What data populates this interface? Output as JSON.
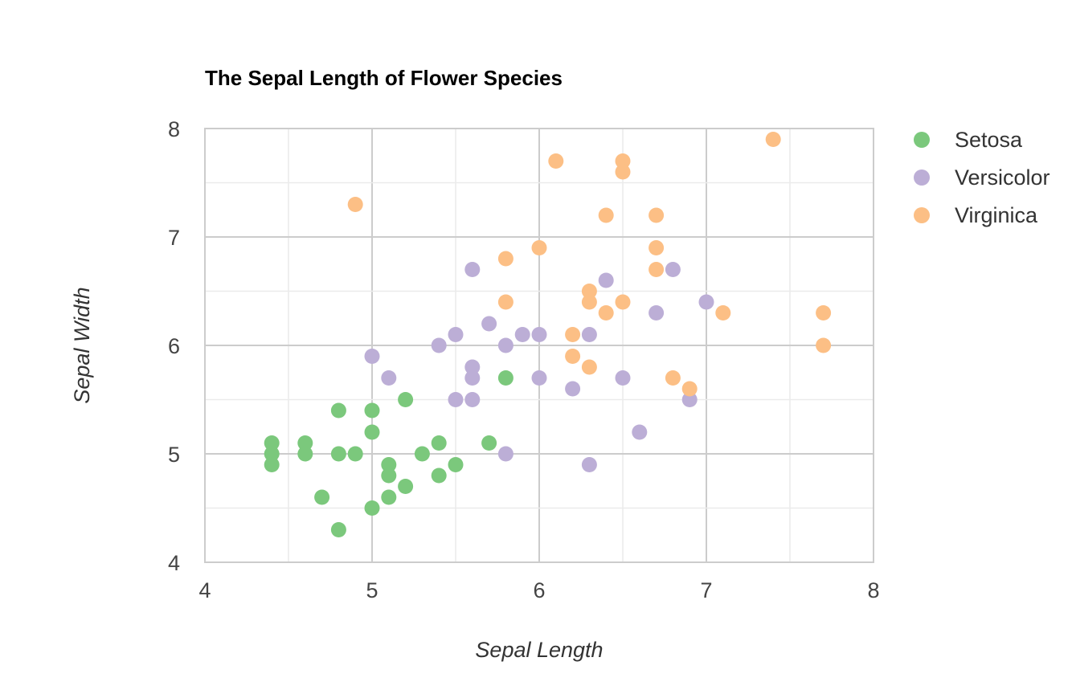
{
  "chart_data": {
    "type": "scatter",
    "title": "The Sepal Length of Flower Species",
    "xlabel": "Sepal Length",
    "ylabel": "Sepal Width",
    "xlim": [
      4,
      8
    ],
    "ylim": [
      4,
      8
    ],
    "xticks": [
      "4",
      "5",
      "6",
      "7",
      "8"
    ],
    "yticks": [
      "4",
      "5",
      "6",
      "7",
      "8"
    ],
    "grid": true,
    "legend_position": "right",
    "series": [
      {
        "name": "Setosa",
        "color": "#7bc87c",
        "points": [
          [
            4.4,
            5.1
          ],
          [
            4.4,
            5.0
          ],
          [
            4.4,
            4.9
          ],
          [
            4.6,
            5.1
          ],
          [
            4.6,
            5.0
          ],
          [
            4.7,
            4.6
          ],
          [
            4.8,
            5.4
          ],
          [
            4.8,
            5.0
          ],
          [
            4.8,
            4.3
          ],
          [
            4.9,
            5.0
          ],
          [
            5.0,
            5.4
          ],
          [
            5.0,
            5.2
          ],
          [
            5.0,
            4.5
          ],
          [
            5.1,
            4.9
          ],
          [
            5.1,
            4.8
          ],
          [
            5.1,
            4.6
          ],
          [
            5.2,
            5.5
          ],
          [
            5.2,
            4.7
          ],
          [
            5.3,
            5.0
          ],
          [
            5.4,
            5.1
          ],
          [
            5.4,
            4.8
          ],
          [
            5.5,
            4.9
          ],
          [
            5.7,
            5.1
          ],
          [
            5.8,
            5.7
          ]
        ]
      },
      {
        "name": "Versicolor",
        "color": "#bcaed6",
        "points": [
          [
            5.0,
            5.9
          ],
          [
            5.1,
            5.7
          ],
          [
            5.4,
            6.0
          ],
          [
            5.5,
            6.1
          ],
          [
            5.5,
            5.5
          ],
          [
            5.6,
            6.7
          ],
          [
            5.6,
            5.8
          ],
          [
            5.6,
            5.7
          ],
          [
            5.6,
            5.5
          ],
          [
            5.7,
            6.2
          ],
          [
            5.8,
            6.0
          ],
          [
            5.8,
            5.0
          ],
          [
            5.9,
            6.1
          ],
          [
            6.0,
            6.1
          ],
          [
            6.0,
            5.7
          ],
          [
            6.2,
            5.6
          ],
          [
            6.3,
            6.1
          ],
          [
            6.3,
            4.9
          ],
          [
            6.4,
            6.6
          ],
          [
            6.5,
            5.7
          ],
          [
            6.6,
            5.2
          ],
          [
            6.7,
            6.3
          ],
          [
            6.8,
            6.7
          ],
          [
            6.9,
            5.5
          ],
          [
            7.0,
            6.4
          ]
        ]
      },
      {
        "name": "Virginica",
        "color": "#fcbf85",
        "points": [
          [
            4.9,
            7.3
          ],
          [
            5.8,
            6.8
          ],
          [
            5.8,
            6.4
          ],
          [
            6.0,
            6.9
          ],
          [
            6.1,
            7.7
          ],
          [
            6.2,
            6.1
          ],
          [
            6.2,
            5.9
          ],
          [
            6.3,
            6.5
          ],
          [
            6.3,
            6.4
          ],
          [
            6.3,
            5.8
          ],
          [
            6.4,
            7.2
          ],
          [
            6.4,
            6.3
          ],
          [
            6.5,
            7.7
          ],
          [
            6.5,
            7.6
          ],
          [
            6.5,
            6.4
          ],
          [
            6.7,
            7.2
          ],
          [
            6.7,
            6.9
          ],
          [
            6.7,
            6.7
          ],
          [
            6.8,
            5.7
          ],
          [
            6.9,
            5.6
          ],
          [
            7.1,
            6.3
          ],
          [
            7.4,
            7.9
          ],
          [
            7.7,
            6.3
          ],
          [
            7.7,
            6.0
          ]
        ]
      }
    ]
  }
}
